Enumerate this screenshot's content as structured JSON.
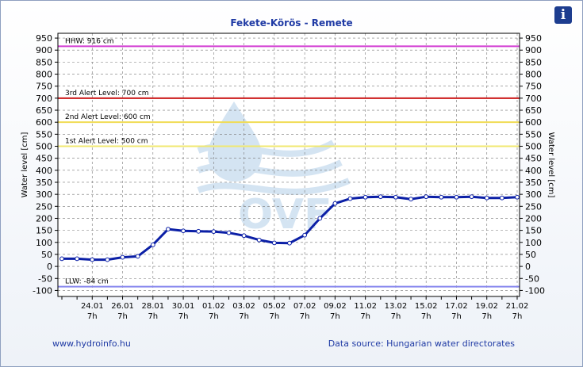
{
  "title": "Fekete-Körös - Remete",
  "info_icon": "info-icon",
  "footer": {
    "website": "www.hydroinfo.hu",
    "source": "Data source: Hungarian water directorates"
  },
  "watermark": "OVF",
  "chart_data": {
    "type": "line",
    "title": "Fekete-Körös - Remete",
    "ylabel": "Water level [cm]",
    "ylabel_right": "Water level [cm]",
    "ylim": [
      -125,
      970
    ],
    "y_ticks": [
      950,
      900,
      850,
      800,
      750,
      700,
      650,
      600,
      550,
      500,
      450,
      400,
      350,
      300,
      250,
      200,
      150,
      100,
      50,
      0,
      -50,
      -100
    ],
    "x_tick_labels": [
      {
        "date": "24.01",
        "time": "7h"
      },
      {
        "date": "26.01",
        "time": "7h"
      },
      {
        "date": "28.01",
        "time": "7h"
      },
      {
        "date": "30.01",
        "time": "7h"
      },
      {
        "date": "01.02",
        "time": "7h"
      },
      {
        "date": "03.02",
        "time": "7h"
      },
      {
        "date": "05.02",
        "time": "7h"
      },
      {
        "date": "07.02",
        "time": "7h"
      },
      {
        "date": "09.02",
        "time": "7h"
      },
      {
        "date": "11.02",
        "time": "7h"
      },
      {
        "date": "13.02",
        "time": "7h"
      },
      {
        "date": "15.02",
        "time": "7h"
      },
      {
        "date": "17.02",
        "time": "7h"
      },
      {
        "date": "19.02",
        "time": "7h"
      },
      {
        "date": "21.02",
        "time": "7h"
      }
    ],
    "grid": true,
    "reference_lines": [
      {
        "label": "HHW: 916 cm",
        "value": 916,
        "color": "#d23cd2"
      },
      {
        "label": "3rd Alert Level: 700 cm",
        "value": 700,
        "color": "#cc1b1b"
      },
      {
        "label": "2nd Alert Level: 600 cm",
        "value": 600,
        "color": "#f0dc55"
      },
      {
        "label": "1st Alert Level: 500 cm",
        "value": 500,
        "color": "#f0e870"
      },
      {
        "label": "LLW: -84 cm",
        "value": -84,
        "color": "#8888ee"
      }
    ],
    "series": [
      {
        "color": "#0b1fa6",
        "x": [
          "22.01 7h",
          "23.01 7h",
          "24.01 7h",
          "25.01 7h",
          "26.01 7h",
          "27.01 7h",
          "28.01 7h",
          "29.01 7h",
          "30.01 7h",
          "31.01 7h",
          "01.02 7h",
          "02.02 7h",
          "03.02 7h",
          "04.02 7h",
          "05.02 7h",
          "06.02 7h",
          "07.02 7h",
          "08.02 7h",
          "09.02 7h",
          "10.02 7h",
          "11.02 7h",
          "12.02 7h",
          "13.02 7h",
          "14.02 7h",
          "15.02 7h",
          "16.02 7h",
          "17.02 7h",
          "18.02 7h",
          "19.02 7h",
          "20.02 7h",
          "21.02 7h"
        ],
        "values": [
          32,
          32,
          28,
          28,
          38,
          42,
          90,
          155,
          148,
          146,
          145,
          140,
          128,
          110,
          98,
          97,
          130,
          200,
          262,
          282,
          288,
          290,
          288,
          280,
          290,
          288,
          288,
          290,
          285,
          285,
          288
        ]
      }
    ]
  }
}
